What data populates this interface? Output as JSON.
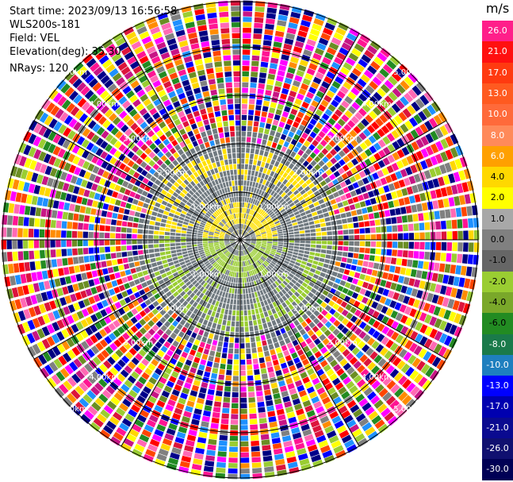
{
  "header": {
    "start_time": "Start time: 2023/09/13 16:56:58",
    "instrument": "WLS200s-181",
    "field": "Field: VEL",
    "elevation": "Elevation(deg): 35.30",
    "nrays": "NRays: 120"
  },
  "range_labels": [
    "1.00km",
    "2.00km",
    "3.00km",
    "4.00km",
    "5.00km"
  ],
  "colorbar": {
    "unit": "m/s",
    "entries": [
      {
        "label": "26.0",
        "color": "#ff1f8a"
      },
      {
        "label": "21.0",
        "color": "#ff1010"
      },
      {
        "label": "17.0",
        "color": "#ff3a10"
      },
      {
        "label": "13.0",
        "color": "#ff5a20"
      },
      {
        "label": "10.0",
        "color": "#ff6a3a"
      },
      {
        "label": "8.0",
        "color": "#ff8a5a"
      },
      {
        "label": "6.0",
        "color": "#ffa000"
      },
      {
        "label": "4.0",
        "color": "#ffd800"
      },
      {
        "label": "2.0",
        "color": "#ffff00"
      },
      {
        "label": "1.0",
        "color": "#a8a8a8"
      },
      {
        "label": "0.0",
        "color": "#808080"
      },
      {
        "label": "-1.0",
        "color": "#666666"
      },
      {
        "label": "-2.0",
        "color": "#9acd32"
      },
      {
        "label": "-4.0",
        "color": "#7aa82a"
      },
      {
        "label": "-6.0",
        "color": "#228b22"
      },
      {
        "label": "-8.0",
        "color": "#1a7a4a"
      },
      {
        "label": "-10.0",
        "color": "#1e7fbf"
      },
      {
        "label": "-13.0",
        "color": "#0000ff"
      },
      {
        "label": "-17.0",
        "color": "#0000b0"
      },
      {
        "label": "-21.0",
        "color": "#0a0a90"
      },
      {
        "label": "-26.0",
        "color": "#101070"
      },
      {
        "label": "-30.0",
        "color": "#000055"
      }
    ]
  }
}
